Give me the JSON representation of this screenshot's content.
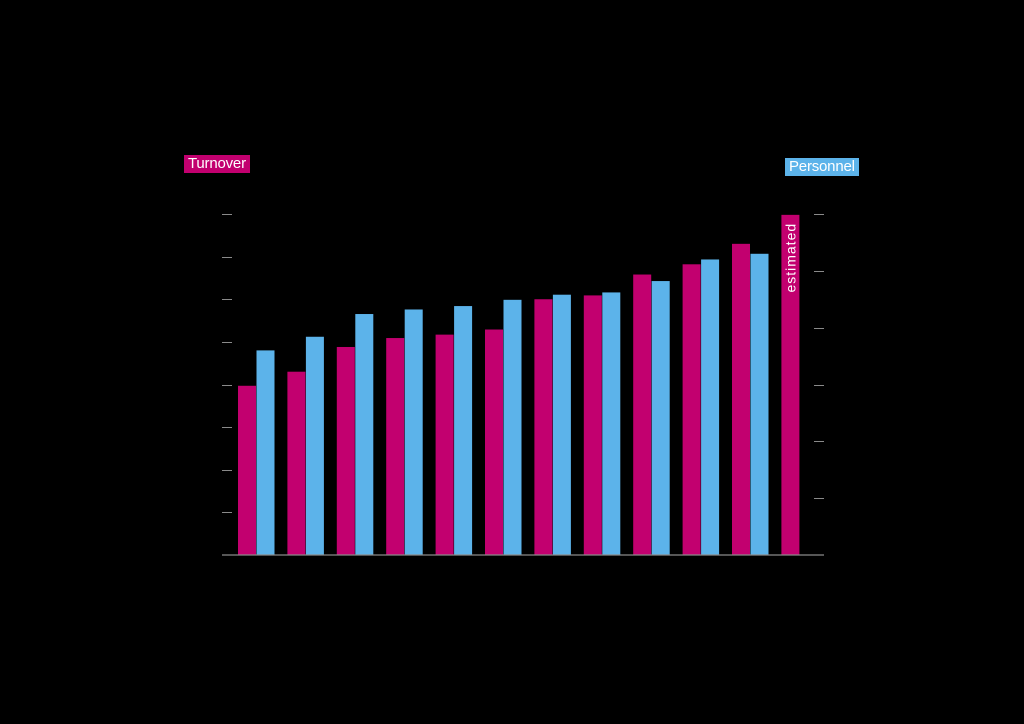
{
  "chart_data": {
    "type": "bar",
    "left_axis_label": "Turnover",
    "right_axis_label": "Personnel",
    "estimated_label": "estimated",
    "left_ylim": [
      0,
      8
    ],
    "right_ylim": [
      0,
      6
    ],
    "left_ticks": [
      1,
      2,
      3,
      4,
      5,
      6,
      7,
      8
    ],
    "right_ticks": [
      1,
      2,
      3,
      4,
      5,
      6
    ],
    "series": [
      {
        "name": "Turnover",
        "axis": "left",
        "values": [
          3.97,
          4.3,
          4.88,
          5.09,
          5.17,
          5.29,
          6.0,
          6.09,
          6.58,
          6.82,
          7.3,
          7.98
        ]
      },
      {
        "name": "Personnel",
        "axis": "right",
        "values": [
          3.6,
          3.84,
          4.24,
          4.32,
          4.38,
          4.49,
          4.58,
          4.62,
          4.82,
          5.2,
          5.3
        ]
      }
    ],
    "colors": {
      "turnover": "#c2006f",
      "personnel": "#5cb3ea",
      "axis": "#8a8a8a",
      "background": "#000000"
    },
    "grid": false,
    "estimated_bar_index": 11
  }
}
